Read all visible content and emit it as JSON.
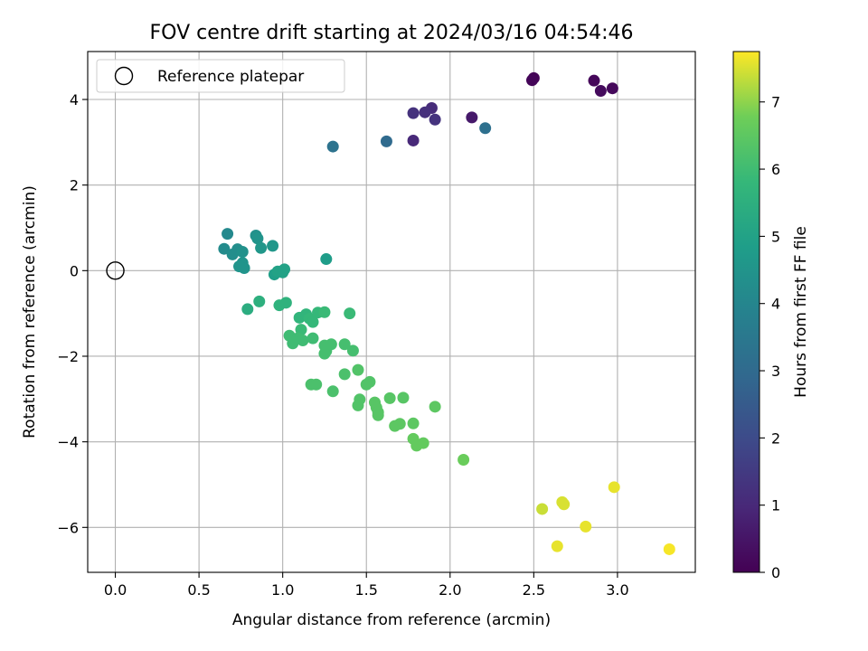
{
  "chart_data": {
    "type": "scatter",
    "title": "FOV centre drift starting at 2024/03/16 04:54:46",
    "xlabel": "Angular distance from reference (arcmin)",
    "ylabel": "Rotation from reference (arcmin)",
    "colorbar_label": "Hours from first FF file",
    "xlim": [
      -0.165,
      3.465
    ],
    "ylim": [
      -7.05,
      5.12
    ],
    "xticks": [
      0.0,
      0.5,
      1.0,
      1.5,
      2.0,
      2.5,
      3.0
    ],
    "xtick_labels": [
      "0.0",
      "0.5",
      "1.0",
      "1.5",
      "2.0",
      "2.5",
      "3.0"
    ],
    "yticks": [
      4,
      2,
      0,
      -2,
      -4,
      -6
    ],
    "ytick_labels": [
      "4",
      "2",
      "0",
      "−2",
      "−4",
      "−6"
    ],
    "colorbar_range": [
      0,
      7.75
    ],
    "colorbar_ticks": [
      0,
      1,
      2,
      3,
      4,
      5,
      6,
      7
    ],
    "colorbar_tick_labels": [
      "0",
      "1",
      "2",
      "3",
      "4",
      "5",
      "6",
      "7"
    ],
    "colormap": "viridis",
    "grid": true,
    "legend": {
      "position": "top-left",
      "label": "Reference platepar"
    },
    "reference_point": {
      "x": 0,
      "y": 0
    },
    "points": [
      {
        "x": 2.5,
        "y": 4.5,
        "c": 0.05
      },
      {
        "x": 2.49,
        "y": 4.45,
        "c": 0.1
      },
      {
        "x": 2.86,
        "y": 4.44,
        "c": 0.15
      },
      {
        "x": 2.97,
        "y": 4.26,
        "c": 0.2
      },
      {
        "x": 2.9,
        "y": 4.2,
        "c": 0.25
      },
      {
        "x": 2.13,
        "y": 3.58,
        "c": 0.6
      },
      {
        "x": 1.89,
        "y": 3.8,
        "c": 1.1
      },
      {
        "x": 1.85,
        "y": 3.7,
        "c": 1.2
      },
      {
        "x": 1.78,
        "y": 3.68,
        "c": 1.25
      },
      {
        "x": 1.91,
        "y": 3.53,
        "c": 1.3
      },
      {
        "x": 1.78,
        "y": 3.04,
        "c": 1.0
      },
      {
        "x": 2.21,
        "y": 3.33,
        "c": 3.2
      },
      {
        "x": 1.62,
        "y": 3.02,
        "c": 3.0
      },
      {
        "x": 1.3,
        "y": 2.9,
        "c": 3.3
      },
      {
        "x": 0.67,
        "y": 0.86,
        "c": 4.1
      },
      {
        "x": 0.65,
        "y": 0.51,
        "c": 4.2
      },
      {
        "x": 0.7,
        "y": 0.38,
        "c": 4.3
      },
      {
        "x": 0.73,
        "y": 0.5,
        "c": 4.3
      },
      {
        "x": 0.76,
        "y": 0.44,
        "c": 4.4
      },
      {
        "x": 0.76,
        "y": 0.18,
        "c": 4.5
      },
      {
        "x": 0.77,
        "y": 0.06,
        "c": 4.5
      },
      {
        "x": 0.74,
        "y": 0.1,
        "c": 4.5
      },
      {
        "x": 0.84,
        "y": 0.82,
        "c": 4.4
      },
      {
        "x": 0.85,
        "y": 0.75,
        "c": 4.5
      },
      {
        "x": 0.87,
        "y": 0.53,
        "c": 4.6
      },
      {
        "x": 0.94,
        "y": 0.58,
        "c": 4.6
      },
      {
        "x": 0.95,
        "y": -0.09,
        "c": 4.9
      },
      {
        "x": 0.97,
        "y": -0.02,
        "c": 5.0
      },
      {
        "x": 1.0,
        "y": -0.04,
        "c": 5.0
      },
      {
        "x": 1.01,
        "y": 0.03,
        "c": 5.0
      },
      {
        "x": 1.26,
        "y": 0.27,
        "c": 4.8
      },
      {
        "x": 0.79,
        "y": -0.9,
        "c": 5.4
      },
      {
        "x": 0.86,
        "y": -0.72,
        "c": 5.5
      },
      {
        "x": 0.98,
        "y": -0.81,
        "c": 5.6
      },
      {
        "x": 1.02,
        "y": -0.75,
        "c": 5.6
      },
      {
        "x": 1.1,
        "y": -1.1,
        "c": 5.7
      },
      {
        "x": 1.14,
        "y": -1.02,
        "c": 5.7
      },
      {
        "x": 1.16,
        "y": -1.12,
        "c": 5.8
      },
      {
        "x": 1.18,
        "y": -1.2,
        "c": 5.8
      },
      {
        "x": 1.21,
        "y": -0.98,
        "c": 5.8
      },
      {
        "x": 1.25,
        "y": -0.97,
        "c": 5.9
      },
      {
        "x": 1.4,
        "y": -1.0,
        "c": 5.9
      },
      {
        "x": 1.11,
        "y": -1.38,
        "c": 5.9
      },
      {
        "x": 1.04,
        "y": -1.52,
        "c": 6.0
      },
      {
        "x": 1.06,
        "y": -1.7,
        "c": 6.0
      },
      {
        "x": 1.09,
        "y": -1.58,
        "c": 6.0
      },
      {
        "x": 1.12,
        "y": -1.63,
        "c": 6.0
      },
      {
        "x": 1.18,
        "y": -1.58,
        "c": 6.0
      },
      {
        "x": 1.25,
        "y": -1.75,
        "c": 6.1
      },
      {
        "x": 1.29,
        "y": -1.72,
        "c": 6.1
      },
      {
        "x": 1.26,
        "y": -1.88,
        "c": 6.1
      },
      {
        "x": 1.25,
        "y": -1.94,
        "c": 6.1
      },
      {
        "x": 1.37,
        "y": -1.72,
        "c": 6.1
      },
      {
        "x": 1.42,
        "y": -1.87,
        "c": 6.1
      },
      {
        "x": 1.17,
        "y": -2.66,
        "c": 6.2
      },
      {
        "x": 1.2,
        "y": -2.66,
        "c": 6.2
      },
      {
        "x": 1.3,
        "y": -2.82,
        "c": 6.2
      },
      {
        "x": 1.37,
        "y": -2.42,
        "c": 6.2
      },
      {
        "x": 1.45,
        "y": -2.32,
        "c": 6.3
      },
      {
        "x": 1.5,
        "y": -2.66,
        "c": 6.3
      },
      {
        "x": 1.52,
        "y": -2.6,
        "c": 6.3
      },
      {
        "x": 1.46,
        "y": -3.01,
        "c": 6.3
      },
      {
        "x": 1.45,
        "y": -3.15,
        "c": 6.3
      },
      {
        "x": 1.55,
        "y": -3.08,
        "c": 6.4
      },
      {
        "x": 1.56,
        "y": -3.2,
        "c": 6.4
      },
      {
        "x": 1.57,
        "y": -3.31,
        "c": 6.4
      },
      {
        "x": 1.57,
        "y": -3.38,
        "c": 6.4
      },
      {
        "x": 1.64,
        "y": -2.98,
        "c": 6.4
      },
      {
        "x": 1.72,
        "y": -2.97,
        "c": 6.4
      },
      {
        "x": 1.91,
        "y": -3.18,
        "c": 6.5
      },
      {
        "x": 1.67,
        "y": -3.63,
        "c": 6.5
      },
      {
        "x": 1.7,
        "y": -3.58,
        "c": 6.5
      },
      {
        "x": 1.78,
        "y": -3.57,
        "c": 6.5
      },
      {
        "x": 1.78,
        "y": -3.93,
        "c": 6.6
      },
      {
        "x": 1.8,
        "y": -4.09,
        "c": 6.6
      },
      {
        "x": 1.84,
        "y": -4.03,
        "c": 6.6
      },
      {
        "x": 2.08,
        "y": -4.42,
        "c": 6.7
      },
      {
        "x": 2.55,
        "y": -5.57,
        "c": 7.4
      },
      {
        "x": 2.67,
        "y": -5.41,
        "c": 7.5
      },
      {
        "x": 2.68,
        "y": -5.46,
        "c": 7.5
      },
      {
        "x": 2.64,
        "y": -6.44,
        "c": 7.6
      },
      {
        "x": 2.81,
        "y": -5.98,
        "c": 7.6
      },
      {
        "x": 2.98,
        "y": -5.06,
        "c": 7.6
      },
      {
        "x": 3.31,
        "y": -6.51,
        "c": 7.7
      }
    ]
  }
}
